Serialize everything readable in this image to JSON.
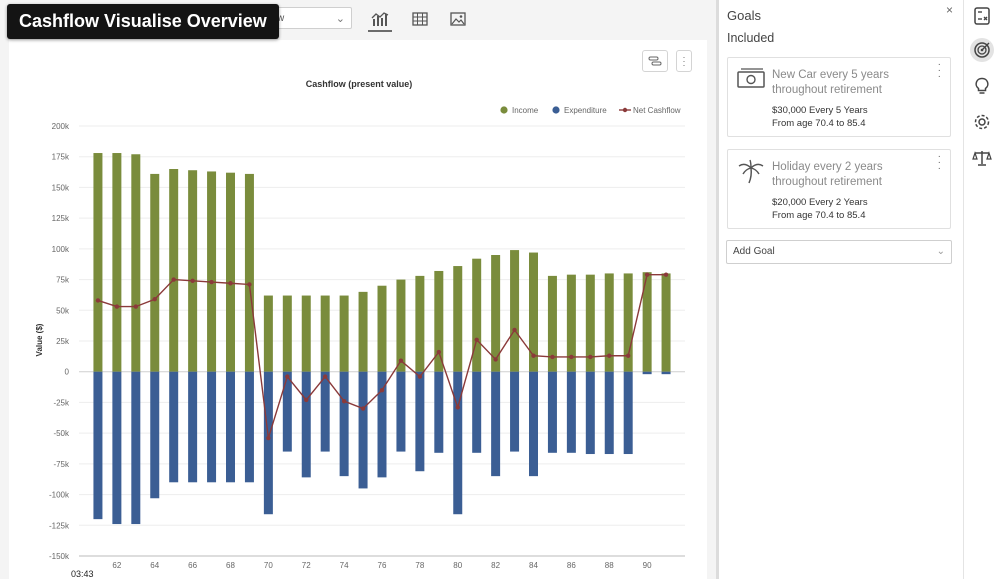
{
  "title_banner": "Cashflow Visualise Overview",
  "toolbar": {
    "select_value_partial": "w",
    "views": [
      "chart-view-icon",
      "table-view-icon",
      "image-view-icon"
    ],
    "active_view": "chart"
  },
  "chart_data": {
    "type": "bar+line",
    "title": "Cashflow (present value)",
    "ylabel": "Value ($)",
    "xlabel": "",
    "ylim": [
      -150000,
      200000
    ],
    "yticks": [
      "200k",
      "175k",
      "150k",
      "125k",
      "100k",
      "75k",
      "50k",
      "25k",
      "0",
      "-25k",
      "-50k",
      "-75k",
      "-100k",
      "-125k",
      "-150k"
    ],
    "xticks": [
      "62",
      "64",
      "66",
      "68",
      "70",
      "72",
      "74",
      "76",
      "78",
      "80",
      "82",
      "84",
      "86",
      "88",
      "90"
    ],
    "x": [
      61,
      62,
      63,
      64,
      65,
      66,
      67,
      68,
      69,
      70,
      71,
      72,
      73,
      74,
      75,
      76,
      77,
      78,
      79,
      80,
      81,
      82,
      83,
      84,
      85,
      86,
      87,
      88,
      89,
      90,
      91
    ],
    "legend_position": "top-right",
    "series": [
      {
        "name": "Income",
        "kind": "bar",
        "color": "#7a8c3c",
        "values": [
          178000,
          178000,
          177000,
          161000,
          165000,
          164000,
          163000,
          162000,
          161000,
          62000,
          62000,
          62000,
          62000,
          62000,
          65000,
          70000,
          75000,
          78000,
          82000,
          86000,
          92000,
          95000,
          99000,
          97000,
          78000,
          79000,
          79000,
          80000,
          80000,
          81000,
          80000
        ]
      },
      {
        "name": "Expenditure",
        "kind": "bar",
        "color": "#3b5e94",
        "values": [
          -120000,
          -124000,
          -124000,
          -103000,
          -90000,
          -90000,
          -90000,
          -90000,
          -90000,
          -116000,
          -65000,
          -86000,
          -65000,
          -85000,
          -95000,
          -86000,
          -65000,
          -81000,
          -66000,
          -116000,
          -66000,
          -85000,
          -65000,
          -85000,
          -66000,
          -66000,
          -67000,
          -67000,
          -67000,
          -2000,
          -2000
        ]
      },
      {
        "name": "Net Cashflow",
        "kind": "line",
        "color": "#8b3a3a",
        "values": [
          58000,
          53000,
          53000,
          59000,
          75000,
          74000,
          73000,
          72000,
          71000,
          -54000,
          -4000,
          -23000,
          -4000,
          -24000,
          -30000,
          -15000,
          9000,
          -4000,
          16000,
          -29000,
          26000,
          10000,
          34000,
          13000,
          12000,
          12000,
          12000,
          13000,
          13000,
          79000,
          79000
        ]
      }
    ]
  },
  "goals": {
    "title": "Goals",
    "close": "×",
    "section": "Included",
    "cards": [
      {
        "name": "New Car every 5 years throughout retirement",
        "amount": "$30,000 Every 5 Years",
        "age": "From age 70.4 to 85.4",
        "icon": "money-icon"
      },
      {
        "name": "Holiday every 2 years throughout retirement",
        "amount": "$20,000 Every 2 Years",
        "age": "From age 70.4 to 85.4",
        "icon": "palm-tree-icon"
      }
    ],
    "add_goal": "Add Goal"
  },
  "rail_icons": [
    "calculator-icon",
    "target-icon",
    "lightbulb-icon",
    "gear-icon",
    "scales-icon"
  ],
  "timestamp": "03:43"
}
